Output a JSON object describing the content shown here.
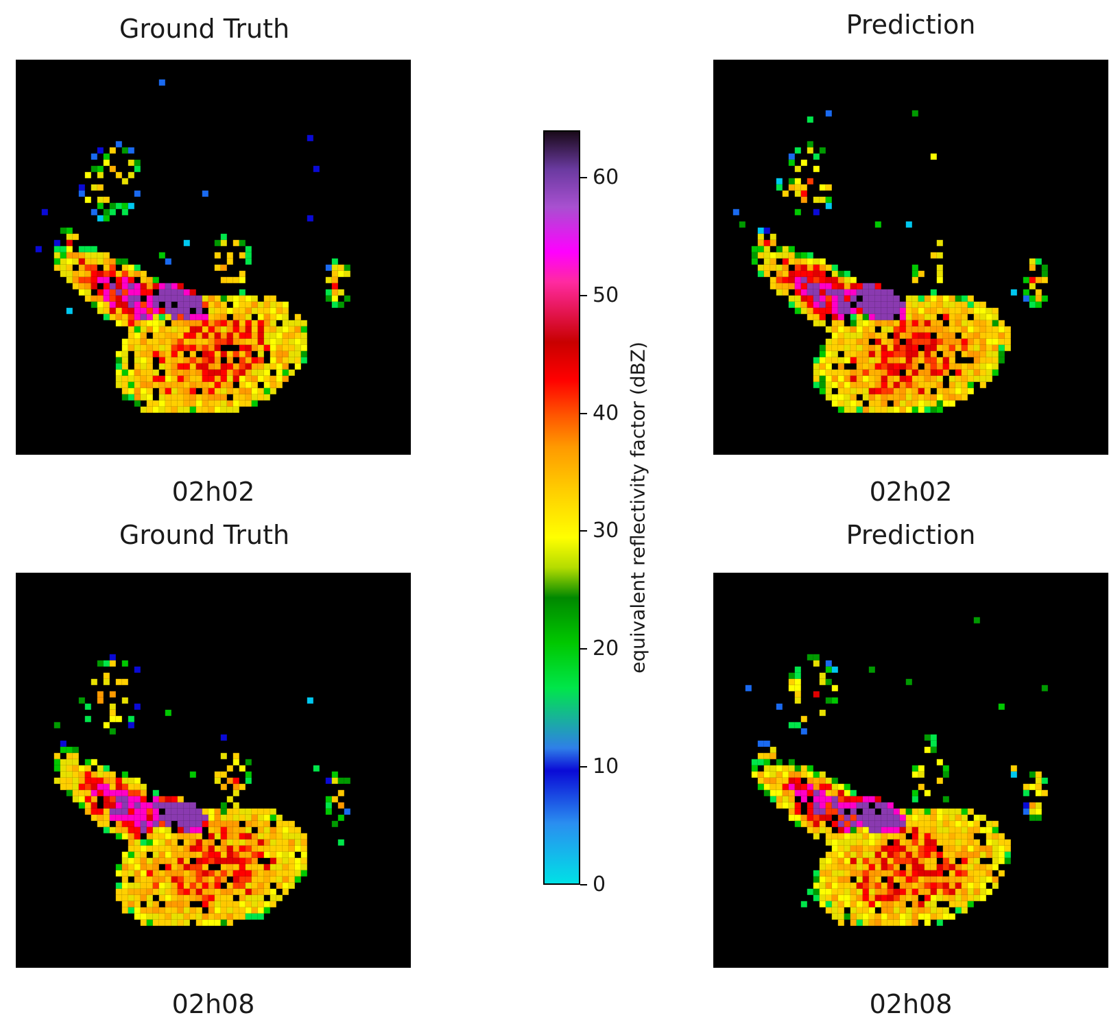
{
  "chart_data": [
    {
      "type": "heatmap",
      "title": "Ground Truth",
      "xlabel": "02h02",
      "grid": false
    },
    {
      "type": "heatmap",
      "title": "Prediction",
      "xlabel": "02h02",
      "grid": false
    },
    {
      "type": "heatmap",
      "title": "Ground Truth",
      "xlabel": "02h08",
      "grid": false
    },
    {
      "type": "heatmap",
      "title": "Prediction",
      "xlabel": "02h08",
      "grid": false
    }
  ],
  "colorbar": {
    "label": "equivalent reflectivity factor (dBZ)",
    "range": [
      0,
      64
    ],
    "ticks": [
      "0",
      "10",
      "20",
      "30",
      "40",
      "50",
      "60"
    ],
    "tick_values": [
      0,
      10,
      20,
      30,
      40,
      50,
      60
    ],
    "colors": [
      "#00e1e6",
      "#0a0ad6",
      "#00c800",
      "#ffff00",
      "#ff9a00",
      "#ff0000",
      "#ff00ff",
      "#1a0a1a"
    ]
  }
}
